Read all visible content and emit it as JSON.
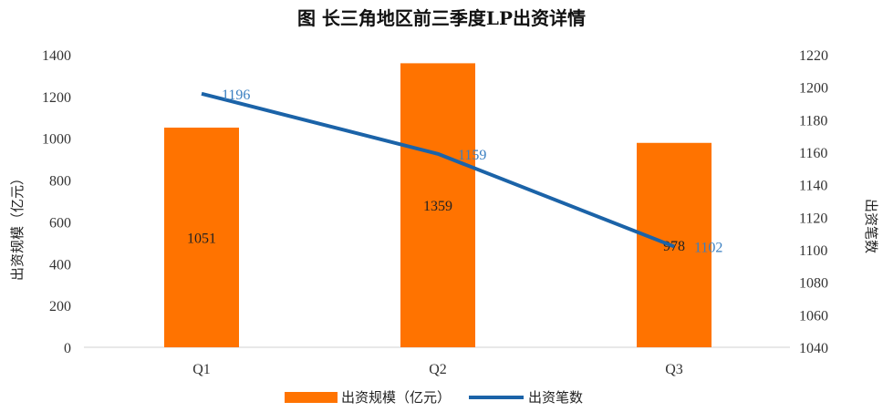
{
  "chart_data": {
    "type": "bar",
    "title": "图  长三角地区前三季度LP出资详情",
    "categories": [
      "Q1",
      "Q2",
      "Q3"
    ],
    "series": [
      {
        "name": "出资规模（亿元）",
        "type": "bar",
        "axis": "left",
        "values": [
          1051,
          1359,
          978
        ],
        "color": "#ff7300"
      },
      {
        "name": "出资笔数",
        "type": "line",
        "axis": "right",
        "values": [
          1196,
          1159,
          1102
        ],
        "color": "#1b63a8"
      }
    ],
    "ylabel": "出资规模（亿元）",
    "ylabel_right": "出资笔数",
    "ylim": [
      0,
      1400
    ],
    "ylim_right": [
      1040,
      1220
    ],
    "yticks": [
      0,
      200,
      400,
      600,
      800,
      1000,
      1200,
      1400
    ],
    "yticks_right": [
      1040,
      1060,
      1080,
      1100,
      1120,
      1140,
      1160,
      1180,
      1200,
      1220
    ],
    "grid": false,
    "legend_position": "bottom"
  }
}
